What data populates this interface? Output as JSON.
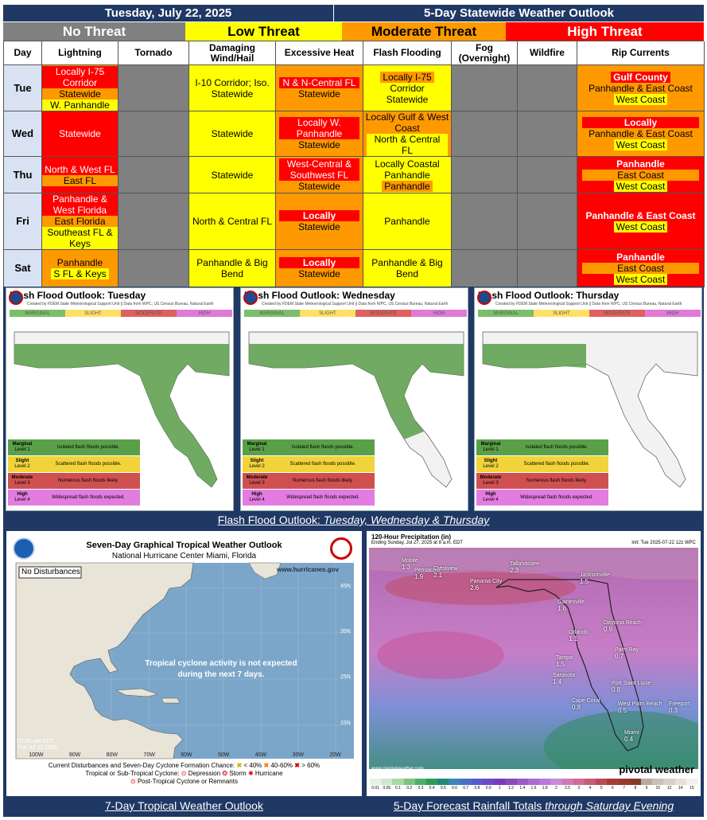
{
  "header": {
    "date": "Tuesday, July 22, 2025",
    "title": "5-Day Statewide Weather Outlook"
  },
  "legend": {
    "none": "No Threat",
    "low": "Low Threat",
    "moderate": "Moderate Threat",
    "high": "High Threat"
  },
  "colors": {
    "none": "#808080",
    "low": "#ffff00",
    "moderate": "#ff9900",
    "high": "#ff0000",
    "navy": "#1f3864"
  },
  "columns": {
    "day": "Day",
    "lightning": "Lightning",
    "tornado": "Tornado",
    "wind": "Damaging Wind/Hail",
    "heat": "Excessive Heat",
    "flood": "Flash Flooding",
    "fog": "Fog (Overnight)",
    "wildfire": "Wildfire",
    "rip": "Rip Currents"
  },
  "days": {
    "tue": "Tue",
    "wed": "Wed",
    "thu": "Thu",
    "fri": "Fri",
    "sat": "Sat"
  },
  "cells": {
    "tue": {
      "lightning": [
        "Locally I-75 Corridor",
        "Statewide",
        "W. Panhandle"
      ],
      "wind": "I-10 Corridor; Iso. Statewide",
      "heat": [
        "N & N-Central FL",
        "Statewide"
      ],
      "flood": [
        "Locally I-75",
        "Corridor",
        "Statewide"
      ],
      "rip": [
        "Gulf County",
        "Panhandle & East Coast",
        "West Coast"
      ]
    },
    "wed": {
      "lightning": "Statewide",
      "wind": "Statewide",
      "heat": [
        "Locally W. Panhandle",
        "Statewide"
      ],
      "flood": [
        "Locally Gulf & West Coast",
        "North & Central FL"
      ],
      "rip": [
        "Locally",
        "Panhandle & East Coast",
        "West Coast"
      ]
    },
    "thu": {
      "lightning": [
        "North & West FL",
        "East FL"
      ],
      "wind": "Statewide",
      "heat": [
        "West-Central & Southwest FL",
        "Statewide"
      ],
      "flood": [
        "Locally Coastal Panhandle",
        "Panhandle"
      ],
      "rip": [
        "Panhandle",
        "East Coast",
        "West Coast"
      ]
    },
    "fri": {
      "lightning": [
        "Panhandle & West Florida",
        "East Florida",
        "Southeast FL & Keys"
      ],
      "wind": "North & Central FL",
      "heat": [
        "Locally",
        "Statewide"
      ],
      "flood": "Panhandle",
      "rip": [
        "Panhandle & East Coast",
        "West Coast"
      ]
    },
    "sat": {
      "lightning": [
        "Panhandle",
        "S FL & Keys"
      ],
      "wind": "Panhandle & Big Bend",
      "heat": [
        "Locally",
        "Statewide"
      ],
      "flood": "Panhandle & Big Bend",
      "rip": [
        "Panhandle",
        "East Coast",
        "West Coast"
      ]
    }
  },
  "flood_maps": {
    "tue_title": "Flash Flood Outlook: Tuesday",
    "wed_title": "Flash Flood Outlook: Wednesday",
    "thu_title": "Flash Flood Outlook: Thursday",
    "credit": "Created by FDEM State Meteorological Support Unit || Data from WPC, US Census Bureau, Natural Earth",
    "levels": [
      "MARGINAL",
      "SLIGHT",
      "MODERATE",
      "HIGH"
    ],
    "legend": [
      {
        "k": "Marginal",
        "l": "Level 1",
        "t": "Isolated flash floods possible."
      },
      {
        "k": "Slight",
        "l": "Level 2",
        "t": "Scattered flash floods possible."
      },
      {
        "k": "Moderate",
        "l": "Level 3",
        "t": "Numerous flash floods likely."
      },
      {
        "k": "High",
        "l": "Level 4",
        "t": "Widespread flash floods expected."
      }
    ],
    "caption_a": "Flash Flood Outlook: ",
    "caption_b": "Tuesday, Wednesday & Thursday"
  },
  "tropical": {
    "title": "Seven-Day Graphical Tropical Weather Outlook",
    "subtitle": "National Hurricane Center  Miami, Florida",
    "site": "www.hurricanes.gov",
    "tag": "No Disturbances",
    "message1": "Tropical cyclone activity is not expected",
    "message2": "during the next 7 days.",
    "time1": "07:30 AM EDT",
    "time2": "Tue Jul 22 2025",
    "lats": [
      "45N",
      "35N",
      "25N",
      "15N"
    ],
    "lons": [
      "100W",
      "90W",
      "80W",
      "70W",
      "60W",
      "50W",
      "40W",
      "30W",
      "20W"
    ],
    "leg1": "Current Disturbances and Seven-Day Cyclone Formation Chance:",
    "leg1a": "< 40%",
    "leg1b": "40-60%",
    "leg1c": "> 60%",
    "leg2": "Tropical or Sub-Tropical Cyclone:",
    "leg2a": "Depression",
    "leg2b": "Storm",
    "leg2c": "Hurricane",
    "leg3": "Post-Tropical Cyclone or Remnants",
    "caption": "7-Day Tropical Weather Outlook"
  },
  "rain": {
    "title": "120-Hour Precipitation (in)",
    "sub": "Ending Sunday, Jul 27, 2025 at 8 a.m. EDT",
    "init": "Init: Tue 2025-07-22 12z WPC",
    "brand": "pivotal weather",
    "site": "www.pivotalweather.com",
    "scale": [
      "0.01",
      "0.05",
      "0.1",
      "0.2",
      "0.3",
      "0.4",
      "0.5",
      "0.6",
      "0.7",
      "0.8",
      "0.9",
      "1",
      "1.2",
      "1.4",
      "1.6",
      "1.8",
      "2",
      "2.5",
      "3",
      "4",
      "5",
      "6",
      "7",
      "8",
      "9",
      "10",
      "12",
      "14",
      "15"
    ],
    "caption_a": "5-Day Forecast Rainfall Totals ",
    "caption_b": "through Saturday Evening",
    "cities": [
      {
        "n": "Mobile",
        "v": "1.3"
      },
      {
        "n": "Pensacola",
        "v": "1.9"
      },
      {
        "n": "Crestview",
        "v": "2.1"
      },
      {
        "n": "Tallahassee",
        "v": "2.3"
      },
      {
        "n": "Panama City",
        "v": "2.6"
      },
      {
        "n": "Jacksonville",
        "v": "1.5"
      },
      {
        "n": "Gainesville",
        "v": "1.6"
      },
      {
        "n": "Daytona Beach",
        "v": "0.9"
      },
      {
        "n": "Orlando",
        "v": "1.1"
      },
      {
        "n": "Tampa",
        "v": "1.5"
      },
      {
        "n": "Palm Bay",
        "v": "0.7"
      },
      {
        "n": "Sarasota",
        "v": "1.4"
      },
      {
        "n": "Port Saint Lucie",
        "v": "0.8"
      },
      {
        "n": "Cape Coral",
        "v": "0.8"
      },
      {
        "n": "West Palm Beach",
        "v": "0.5"
      },
      {
        "n": "Freeport",
        "v": "0.3"
      },
      {
        "n": "Miami",
        "v": "0.4"
      }
    ]
  }
}
